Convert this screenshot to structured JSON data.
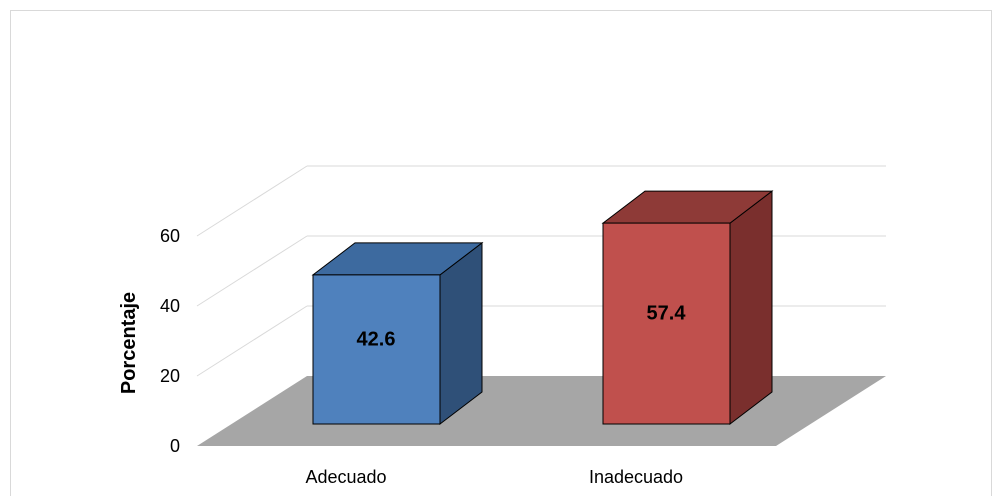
{
  "chart_data": {
    "type": "bar",
    "categories": [
      "Adecuado",
      "Inadecuado"
    ],
    "values": [
      42.6,
      57.4
    ],
    "data_labels": [
      "42.6",
      "57.4"
    ],
    "title": "",
    "xlabel": "",
    "ylabel": "Porcentaje",
    "ylim": [
      0,
      60
    ],
    "yticks": [
      0,
      20,
      40,
      60
    ],
    "ytick_labels": [
      "0",
      "20",
      "40",
      "60"
    ],
    "grid": true,
    "style": "3d-column",
    "colors": {
      "bar_front": [
        "#4f81bd",
        "#c0504d"
      ],
      "bar_top": [
        "#3d6a9f",
        "#8e3a37"
      ],
      "bar_side": [
        "#2f5078",
        "#7a2f2d"
      ],
      "floor": "#a6a6a6",
      "grid": "#d9d9d9"
    }
  }
}
